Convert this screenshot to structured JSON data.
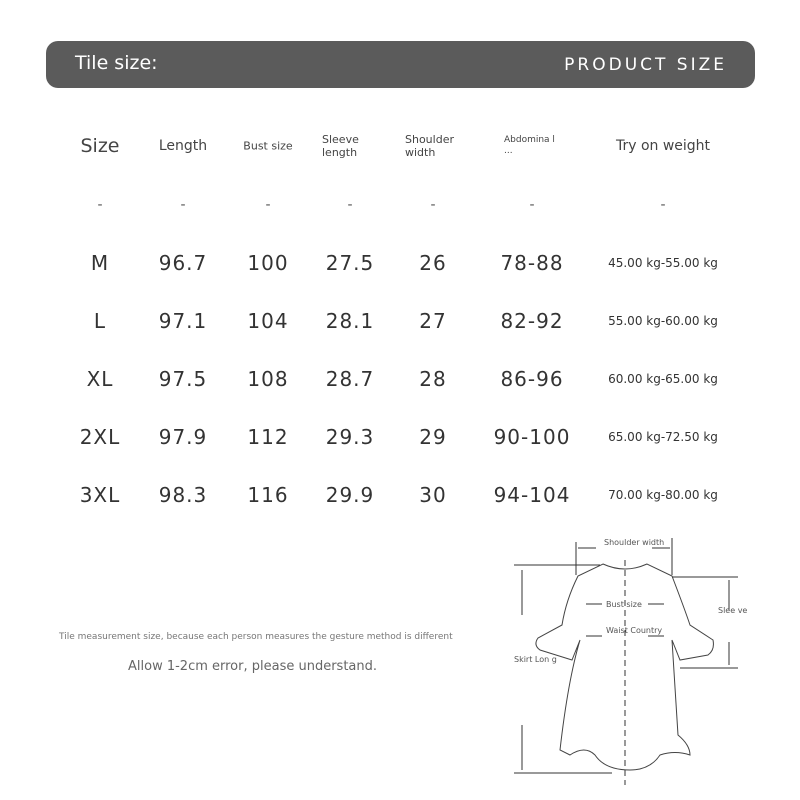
{
  "banner": {
    "left_title": "Tile size:",
    "right_title": "PRODUCT SIZE"
  },
  "table": {
    "headers": [
      "Size",
      "Length",
      "Bust size",
      "Sleeve length",
      "Shoulder width",
      "Abdomina l ...",
      "Try on weight"
    ],
    "rows": [
      [
        "-",
        "-",
        "-",
        "-",
        "-",
        "-",
        "-"
      ],
      [
        "M",
        "96.7",
        "100",
        "27.5",
        "26",
        "78-88",
        "45.00 kg-55.00 kg"
      ],
      [
        "L",
        "97.1",
        "104",
        "28.1",
        "27",
        "82-92",
        "55.00 kg-60.00 kg"
      ],
      [
        "XL",
        "97.5",
        "108",
        "28.7",
        "28",
        "86-96",
        "60.00 kg-65.00 kg"
      ],
      [
        "2XL",
        "97.9",
        "112",
        "29.3",
        "29",
        "90-100",
        "65.00 kg-72.50 kg"
      ],
      [
        "3XL",
        "98.3",
        "116",
        "29.9",
        "30",
        "94-104",
        "70.00 kg-80.00 kg"
      ]
    ]
  },
  "notes": {
    "measurement": "Tile measurement size, because each person measures the gesture method is different",
    "error": "Allow 1-2cm error, please understand."
  },
  "diagram": {
    "shoulder": "Shoulder width",
    "bust": "Bust size",
    "waist": "Waist Country",
    "sleeve": "Slee ve Lo...",
    "skirt": "Skirt Lon g"
  }
}
